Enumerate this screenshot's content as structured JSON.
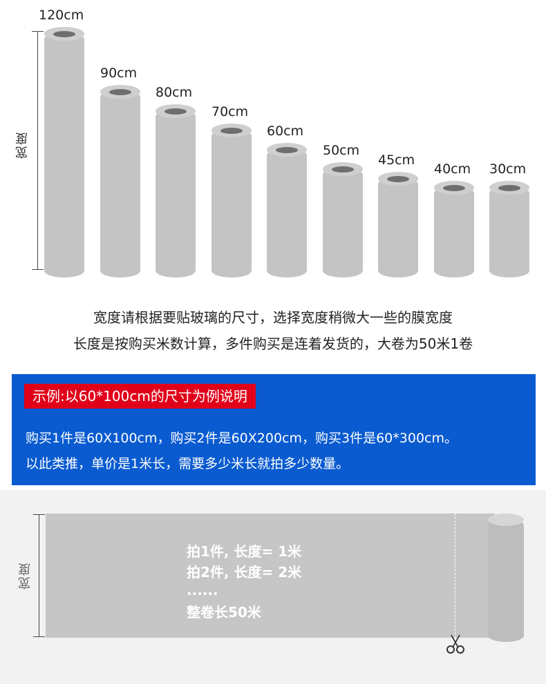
{
  "top": {
    "dimension_label": "宽度",
    "rolls": [
      {
        "label": "120cm",
        "width_cm": 120
      },
      {
        "label": "90cm",
        "width_cm": 90
      },
      {
        "label": "80cm",
        "width_cm": 80
      },
      {
        "label": "70cm",
        "width_cm": 70
      },
      {
        "label": "60cm",
        "width_cm": 60
      },
      {
        "label": "50cm",
        "width_cm": 50
      },
      {
        "label": "45cm",
        "width_cm": 45
      },
      {
        "label": "40cm",
        "width_cm": 40
      },
      {
        "label": "30cm",
        "width_cm": 30
      }
    ]
  },
  "instructions": {
    "line1": "宽度请根据要贴玻璃的尺寸，选择宽度稍微大一些的膜宽度",
    "line2": "长度是按购买米数计算，多件购买是连着发货的，大卷为50米1卷"
  },
  "example": {
    "badge": "示例:以60*100cm的尺寸为例说明",
    "line1": "购买1件是60X100cm，购买2件是60X200cm，购买3件是60*300cm。",
    "line2": "以此类推，单价是1米长，需要多少米长就拍多少数量。"
  },
  "bottom": {
    "dimension_label": "宽度",
    "line1": "拍1件, 长度= 1米",
    "line2": "拍2件, 长度= 2米",
    "line3": "......",
    "line4": "整卷长50米"
  },
  "colors": {
    "blue_box": "#0a5bd0",
    "badge_red": "#e0001a",
    "roll_gray": "#c4c4c4"
  }
}
